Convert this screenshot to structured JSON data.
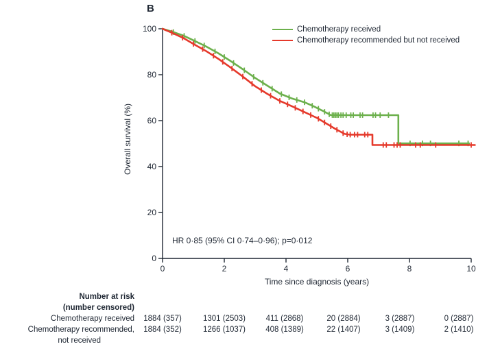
{
  "panel_label": "B",
  "colors": {
    "green": "#6CB04C",
    "red": "#E5392B",
    "text": "#1f2733",
    "axis": "#1f2733"
  },
  "legend": {
    "items": [
      {
        "label": "Chemotherapy received",
        "color": "#6CB04C"
      },
      {
        "label": "Chemotherapy recommended but not received",
        "color": "#E5392B"
      }
    ]
  },
  "annotation": "HR 0·85 (95% CI 0·74–0·96); p=0·012",
  "chart_data": {
    "type": "line",
    "subtype": "kaplan-meier-step",
    "title": "B",
    "xlabel": "Time since diagnosis (years)",
    "ylabel": "Overall survival (%)",
    "xlim": [
      0,
      10
    ],
    "ylim": [
      0,
      100
    ],
    "xticks": [
      0,
      2,
      4,
      6,
      8,
      10
    ],
    "yticks": [
      0,
      20,
      40,
      60,
      80,
      100
    ],
    "grid": false,
    "legend_position": "top-right",
    "annotation": "HR 0·85 (95% CI 0·74–0·96); p=0·012",
    "series": [
      {
        "name": "Chemotherapy received",
        "color": "#6CB04C",
        "points": [
          [
            0,
            100
          ],
          [
            0.3,
            98.8
          ],
          [
            0.7,
            96.9
          ],
          [
            1,
            95
          ],
          [
            1.4,
            92.4
          ],
          [
            1.8,
            89.4
          ],
          [
            2.2,
            86
          ],
          [
            2.6,
            82.4
          ],
          [
            3,
            78.6
          ],
          [
            3.4,
            75.2
          ],
          [
            3.8,
            71.8
          ],
          [
            4.2,
            69.6
          ],
          [
            4.6,
            68
          ],
          [
            4.9,
            66.2
          ],
          [
            5.2,
            64.2
          ],
          [
            5.45,
            62.4
          ],
          [
            7.64,
            62.4
          ],
          [
            7.64,
            50.1
          ],
          [
            9.93,
            50.1
          ]
        ],
        "censor_years": [
          0.35,
          0.7,
          1.05,
          1.35,
          1.7,
          2.0,
          2.3,
          2.65,
          2.95,
          3.25,
          3.55,
          3.85,
          4.1,
          4.35,
          4.6,
          4.85,
          5.05,
          5.25,
          5.4,
          5.5,
          5.55,
          5.6,
          5.65,
          5.7,
          5.78,
          5.85,
          5.95,
          6.1,
          6.18,
          6.4,
          6.48,
          6.82,
          6.9,
          7.05,
          7.32,
          8.02,
          8.42,
          8.68,
          9.6,
          9.9
        ]
      },
      {
        "name": "Chemotherapy recommended but not received",
        "color": "#E5392B",
        "points": [
          [
            0,
            100
          ],
          [
            0.3,
            98.3
          ],
          [
            0.7,
            95.8
          ],
          [
            1,
            93.4
          ],
          [
            1.4,
            90.4
          ],
          [
            1.8,
            87
          ],
          [
            2.2,
            83.2
          ],
          [
            2.6,
            79.2
          ],
          [
            3,
            75
          ],
          [
            3.4,
            71.6
          ],
          [
            3.8,
            68.6
          ],
          [
            4.2,
            66.2
          ],
          [
            4.6,
            63.7
          ],
          [
            5,
            61.2
          ],
          [
            5.3,
            58.8
          ],
          [
            5.6,
            56.4
          ],
          [
            5.9,
            54.2
          ],
          [
            6.05,
            53.9
          ],
          [
            6.8,
            53.9
          ],
          [
            6.8,
            49.4
          ],
          [
            10.12,
            49.4
          ]
        ],
        "censor_years": [
          0.3,
          0.65,
          1.0,
          1.3,
          1.65,
          1.95,
          2.25,
          2.6,
          2.9,
          3.2,
          3.5,
          3.8,
          4.05,
          4.3,
          4.55,
          4.8,
          5.05,
          5.25,
          5.45,
          5.65,
          5.85,
          5.98,
          6.08,
          6.22,
          6.32,
          6.55,
          6.65,
          7.15,
          7.25,
          7.5,
          7.6,
          7.7,
          8.2,
          8.35,
          8.85,
          10.0
        ]
      }
    ]
  },
  "risk_table": {
    "header_line1": "Number at risk",
    "header_line2": "(number censored)",
    "rows": [
      {
        "label": "Chemotherapy received",
        "label_line2": "",
        "values": [
          "1884 (357)",
          "1301 (2503)",
          "411 (2868)",
          "20 (2884)",
          "3 (2887)",
          "0 (2887)"
        ]
      },
      {
        "label": "Chemotherapy recommended,",
        "label_line2": "not received",
        "values": [
          "1884 (352)",
          "1266 (1037)",
          "408 (1389)",
          "22 (1407)",
          "3 (1409)",
          "2 (1410)"
        ]
      }
    ]
  }
}
